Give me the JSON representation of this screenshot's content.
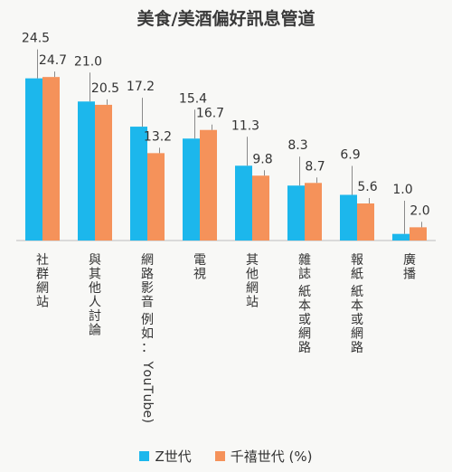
{
  "chart_data": {
    "type": "bar",
    "title": "美食/美酒偏好訊息管道",
    "categories": [
      "社群網站",
      "與其他人討論",
      "網路影音 例如：YouTube)",
      "電視",
      "其他網站",
      "雜誌 紙本或網路",
      "報紙 紙本或網路",
      "廣播"
    ],
    "series": [
      {
        "name": "Z世代",
        "values": [
          24.5,
          21.0,
          17.2,
          15.4,
          11.3,
          8.3,
          6.9,
          1.0
        ],
        "color": "#1cb7ec"
      },
      {
        "name": "千禧世代 (%)",
        "values": [
          24.7,
          20.5,
          13.2,
          16.7,
          9.8,
          8.7,
          5.6,
          2.0
        ],
        "color": "#f5925a"
      }
    ],
    "ylim": [
      0,
      28
    ],
    "legend_position": "bottom",
    "grid": false
  }
}
